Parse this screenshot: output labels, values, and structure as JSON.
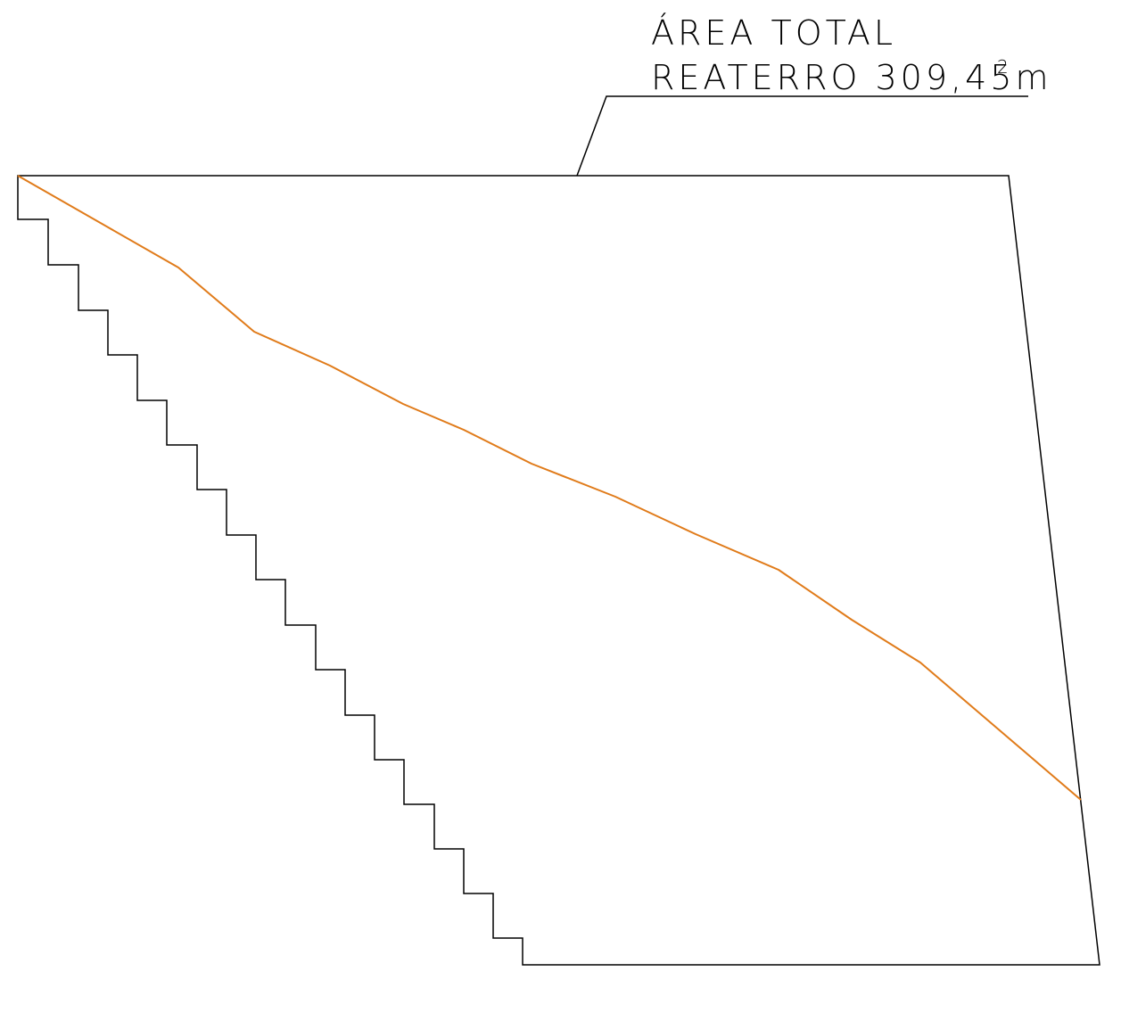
{
  "annotation": {
    "line1": "ÁREA TOTAL",
    "line2": "REATERRO 309,45m",
    "superscript": "2"
  },
  "colors": {
    "outline": "#000000",
    "terrain": "#e07b1a",
    "text": "#000000"
  }
}
